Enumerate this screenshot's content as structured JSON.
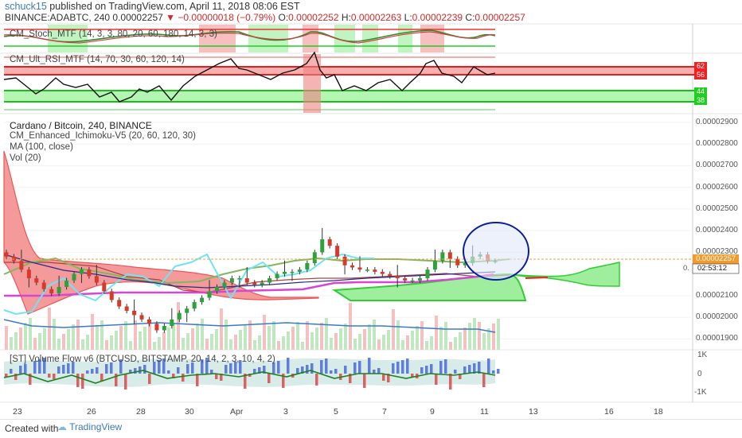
{
  "header": {
    "user": "schuck15",
    "published": "published on TradingView.com, April 11, 2018 08:06 EST",
    "symbol": "BINANCE:ADABTC, 240",
    "last": "0.00002257",
    "change": "−0.00000018 (−0.79%)",
    "o_label": "O:",
    "o_val": "0.00002252",
    "h_label": "H:",
    "h_val": "0.00002263",
    "l_label": "L:",
    "l_val": "0.00002239",
    "c_label": "C:",
    "c_val": "0.00002257"
  },
  "indicators": {
    "stoch": "CM_Stoch_MTF (14, 3, 3, 80, 20, 60, 180, 14, 3, 3)",
    "rsi": "CM_Ult_RSI_MTF (14, 70, 30, 60, 120, 14)",
    "main_title": "Cardano / Bitcoin, 240, BINANCE",
    "ichimoku": "CM_Enhanced_Ichimoku-V5 (20, 60, 120, 30)",
    "ma": "MA (100, close)",
    "vol": "Vol (20)",
    "vflow": "[ST] Volume Flow v6 (BTCUSD, BITSTAMP, 20, 14, 2, 3, 10, 4, 2)"
  },
  "rsi_levels": [
    "62",
    "56",
    "44",
    "38"
  ],
  "price_axis": [
    "0.00002900",
    "0.00002800",
    "0.00002700",
    "0.00002600",
    "0.00002500",
    "0.00002400",
    "0.00002300",
    "0.00002100",
    "0.00002000",
    "0.00001900"
  ],
  "price_tags": {
    "last": "0.00002257",
    "countdown": "02:53:12",
    "partial": "0."
  },
  "vflow_axis": [
    "1K",
    "0",
    "-1K"
  ],
  "x_labels": [
    "23",
    "26",
    "28",
    "30",
    "Apr",
    "3",
    "5",
    "7",
    "9",
    "11",
    "13",
    "16",
    "18"
  ],
  "footer": {
    "created": "Created with",
    "brand": "TradingView"
  },
  "colors": {
    "up": "#2aa43a",
    "down": "#d83a2a",
    "cloud_red": "#f07070",
    "cloud_green": "#7ee07e",
    "kijun": "#2b2b8a",
    "ma": "#d546d5",
    "tenkan": "#59e0f0",
    "vol_ma": "#3a7acb",
    "circle": "#0a1fa0"
  },
  "chart_data": {
    "type": "candlestick",
    "ylim": [
      1.85e-05,
      2.94e-05
    ],
    "price_ticks": [
      2.9e-05,
      2.8e-05,
      2.7e-05,
      2.6e-05,
      2.5e-05,
      2.4e-05,
      2.3e-05,
      2.1e-05,
      2e-05,
      1.9e-05
    ],
    "last_price": 2.257e-05,
    "close": [
      2.28e-05,
      2.26e-05,
      2.22e-05,
      2.18e-05,
      2.16e-05,
      2.13e-05,
      2.11e-05,
      2.14e-05,
      2.17e-05,
      2.2e-05,
      2.22e-05,
      2.19e-05,
      2.16e-05,
      2.12e-05,
      2.08e-05,
      2.05e-05,
      2.03e-05,
      2.01e-05,
      1.99e-05,
      1.97e-05,
      1.94e-05,
      1.96e-05,
      1.99e-05,
      2.02e-05,
      2.04e-05,
      2.07e-05,
      2.09e-05,
      2.12e-05,
      2.14e-05,
      2.16e-05,
      2.18e-05,
      2.18e-05,
      2.16e-05,
      2.15e-05,
      2.16e-05,
      2.18e-05,
      2.2e-05,
      2.21e-05,
      2.21e-05,
      2.22e-05,
      2.25e-05,
      2.3e-05,
      2.36e-05,
      2.33e-05,
      2.28e-05,
      2.24e-05,
      2.23e-05,
      2.22e-05,
      2.22e-05,
      2.21e-05,
      2.2e-05,
      2.19e-05,
      2.18e-05,
      2.17e-05,
      2.17e-05,
      2.18e-05,
      2.22e-05,
      2.26e-05,
      2.3e-05,
      2.27e-05,
      2.24e-05,
      2.25e-05,
      2.28e-05,
      2.29e-05,
      2.26e-05,
      2.26e-05
    ]
  }
}
